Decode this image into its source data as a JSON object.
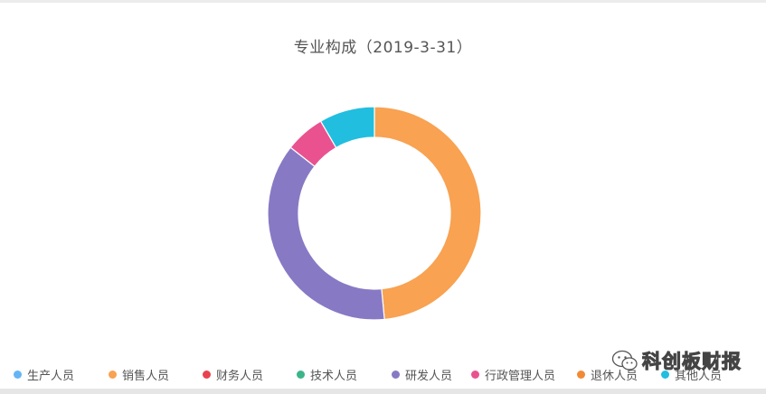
{
  "chart_data": {
    "type": "pie",
    "variant": "donut",
    "title": "专业构成（2019-3-31）",
    "categories": [
      "生产人员",
      "销售人员",
      "财务人员",
      "技术人员",
      "研发人员",
      "行政管理人员",
      "退休人员",
      "其他人员"
    ],
    "values": [
      0,
      48.5,
      0,
      0,
      37.1,
      6.0,
      0,
      8.4
    ],
    "colors": [
      "#64b5f6",
      "#f8a252",
      "#e8424e",
      "#3bb58a",
      "#8879c5",
      "#e9528f",
      "#f28a34",
      "#21bedf"
    ],
    "start_angle_deg": 90,
    "direction": "clockwise",
    "legend_position": "bottom"
  },
  "watermark": {
    "text": "科创板财报",
    "icon": "wechat-logo-icon"
  }
}
